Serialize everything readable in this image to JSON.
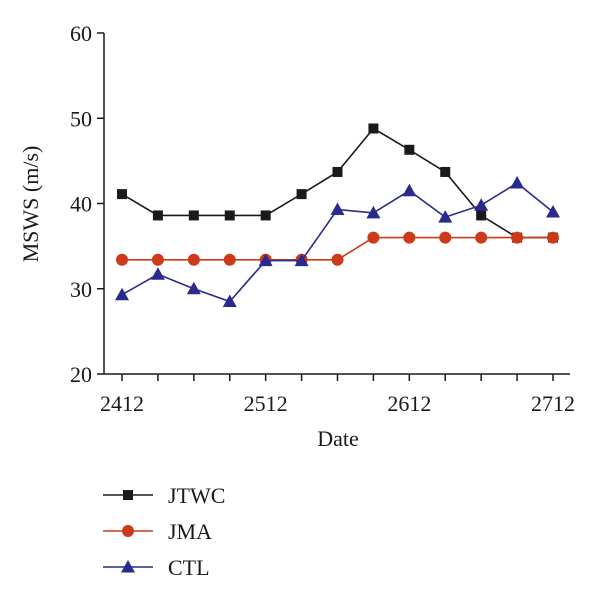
{
  "chart_data": {
    "type": "line",
    "xlabel": "Date",
    "ylabel": "MSWS (m/s)",
    "ylim": [
      20,
      60
    ],
    "yticks": [
      20,
      30,
      40,
      50,
      60
    ],
    "x": [
      0,
      1,
      2,
      3,
      4,
      5,
      6,
      7,
      8,
      9,
      10,
      11,
      12
    ],
    "xtick_labels": [
      {
        "x": 0,
        "label": "2412"
      },
      {
        "x": 4,
        "label": "2512"
      },
      {
        "x": 8,
        "label": "2612"
      },
      {
        "x": 12,
        "label": "2712"
      }
    ],
    "grid": false,
    "legend_position": "bottom-left",
    "series": [
      {
        "name": "JTWC",
        "color": "#1a1a1a",
        "marker": "square",
        "values": [
          41.1,
          38.6,
          38.6,
          38.6,
          38.6,
          41.1,
          43.7,
          48.8,
          46.3,
          43.7,
          38.6,
          36.0,
          36.0
        ]
      },
      {
        "name": "JMA",
        "color": "#cc3a1a",
        "marker": "circle",
        "values": [
          33.4,
          33.4,
          33.4,
          33.4,
          33.4,
          33.4,
          33.4,
          36.0,
          36.0,
          36.0,
          36.0,
          36.0,
          36.0
        ]
      },
      {
        "name": "CTL",
        "color": "#2a2a8c",
        "marker": "triangle",
        "values": [
          29.3,
          31.7,
          30.0,
          28.5,
          33.3,
          33.3,
          39.3,
          38.9,
          41.5,
          38.4,
          39.8,
          42.4,
          39.0
        ]
      }
    ]
  }
}
